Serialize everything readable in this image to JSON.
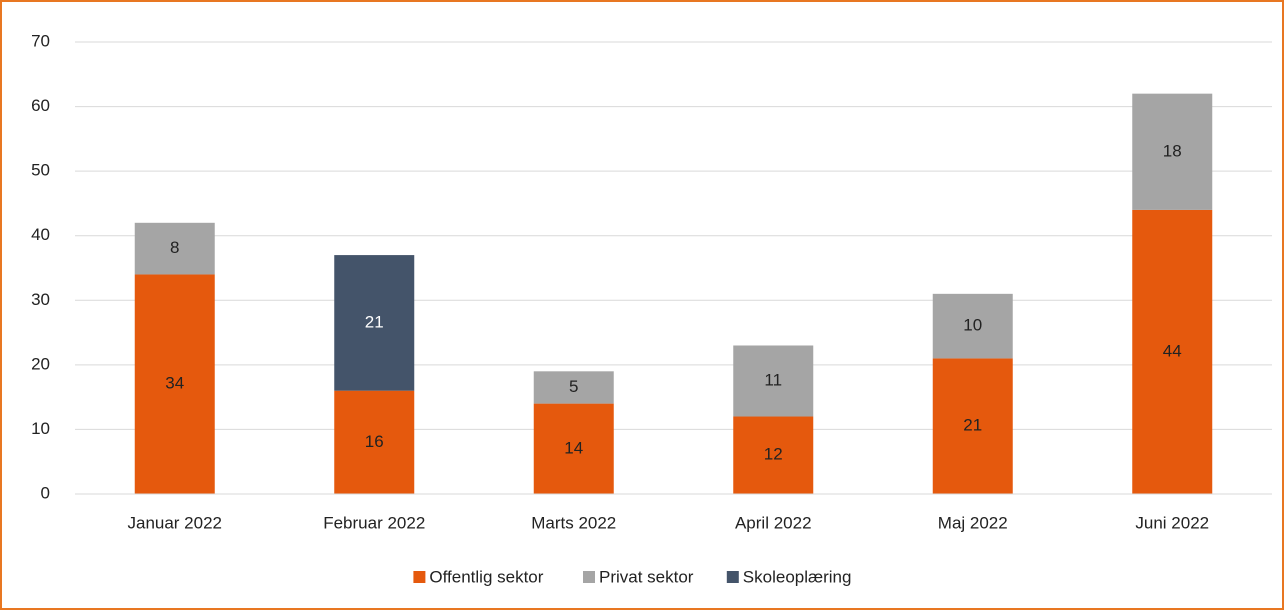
{
  "chart_data": {
    "type": "stacked_bar",
    "categories": [
      "Januar 2022",
      "Februar 2022",
      "Marts 2022",
      "April 2022",
      "Maj 2022",
      "Juni 2022"
    ],
    "series": [
      {
        "name": "Offentlig sektor",
        "color": "#e5590d",
        "values": [
          34,
          16,
          14,
          12,
          21,
          44
        ]
      },
      {
        "name": "Privat sektor",
        "color": "#a5a5a5",
        "values": [
          8,
          null,
          5,
          11,
          10,
          18
        ]
      },
      {
        "name": "Skoleoplæring",
        "color": "#44546a",
        "values": [
          null,
          21,
          null,
          null,
          null,
          null
        ]
      }
    ],
    "ylim": [
      0,
      70
    ],
    "yticks": [
      0,
      10,
      20,
      30,
      40,
      50,
      60,
      70
    ],
    "grid": true,
    "legend": "bottom"
  }
}
